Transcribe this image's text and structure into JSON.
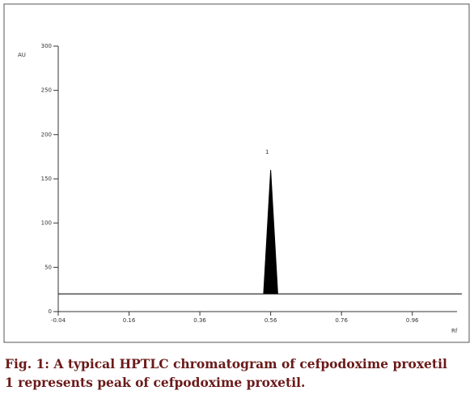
{
  "chart_data": {
    "type": "line",
    "x_label": "Rf",
    "y_label": "AU",
    "x": [
      -0.04,
      0.54,
      0.56,
      0.58,
      1.1
    ],
    "series": [
      {
        "name": "Cefpodoxime proxetil",
        "color": "#000000",
        "values": [
          20,
          20,
          160,
          20,
          20
        ]
      }
    ],
    "xlim": [
      -0.04,
      1.1
    ],
    "ylim": [
      0,
      300
    ],
    "xticks": [
      -0.04,
      0.16,
      0.36,
      0.56,
      0.76,
      0.96
    ],
    "yticks": [
      0,
      50,
      100,
      150,
      200,
      250,
      300
    ],
    "annotations": [
      {
        "text": "1",
        "x": 0.55,
        "y": 180
      }
    ]
  },
  "caption": [
    "Fig. 1: A typical HPTLC chromatogram of cefpodoxime proxetil",
    "1 represents peak of cefpodoxime proxetil."
  ]
}
